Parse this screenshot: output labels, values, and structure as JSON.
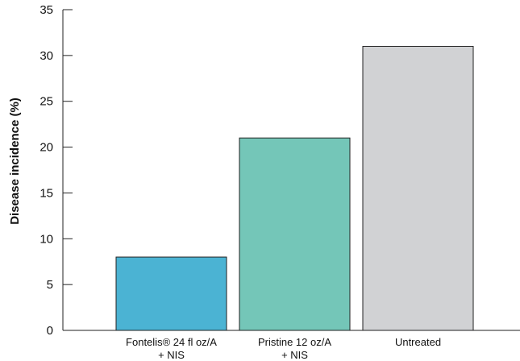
{
  "chart_data": {
    "type": "bar",
    "ylabel": "Disease incidence (%)",
    "ylim": [
      0,
      35
    ],
    "yticks": [
      "0",
      "5",
      "10",
      "15",
      "20",
      "25",
      "30",
      "35"
    ],
    "categories": [
      {
        "line1": "Fontelis® 24 fl oz/A",
        "line2": "+ NIS"
      },
      {
        "line1": "Pristine 12 oz/A",
        "line2": "+ NIS"
      },
      {
        "line1": "Untreated",
        "line2": ""
      }
    ],
    "values": [
      8,
      21,
      31
    ],
    "bar_colors": [
      "#4bb3d3",
      "#74c6b8",
      "#d1d2d4"
    ],
    "grid": false
  }
}
